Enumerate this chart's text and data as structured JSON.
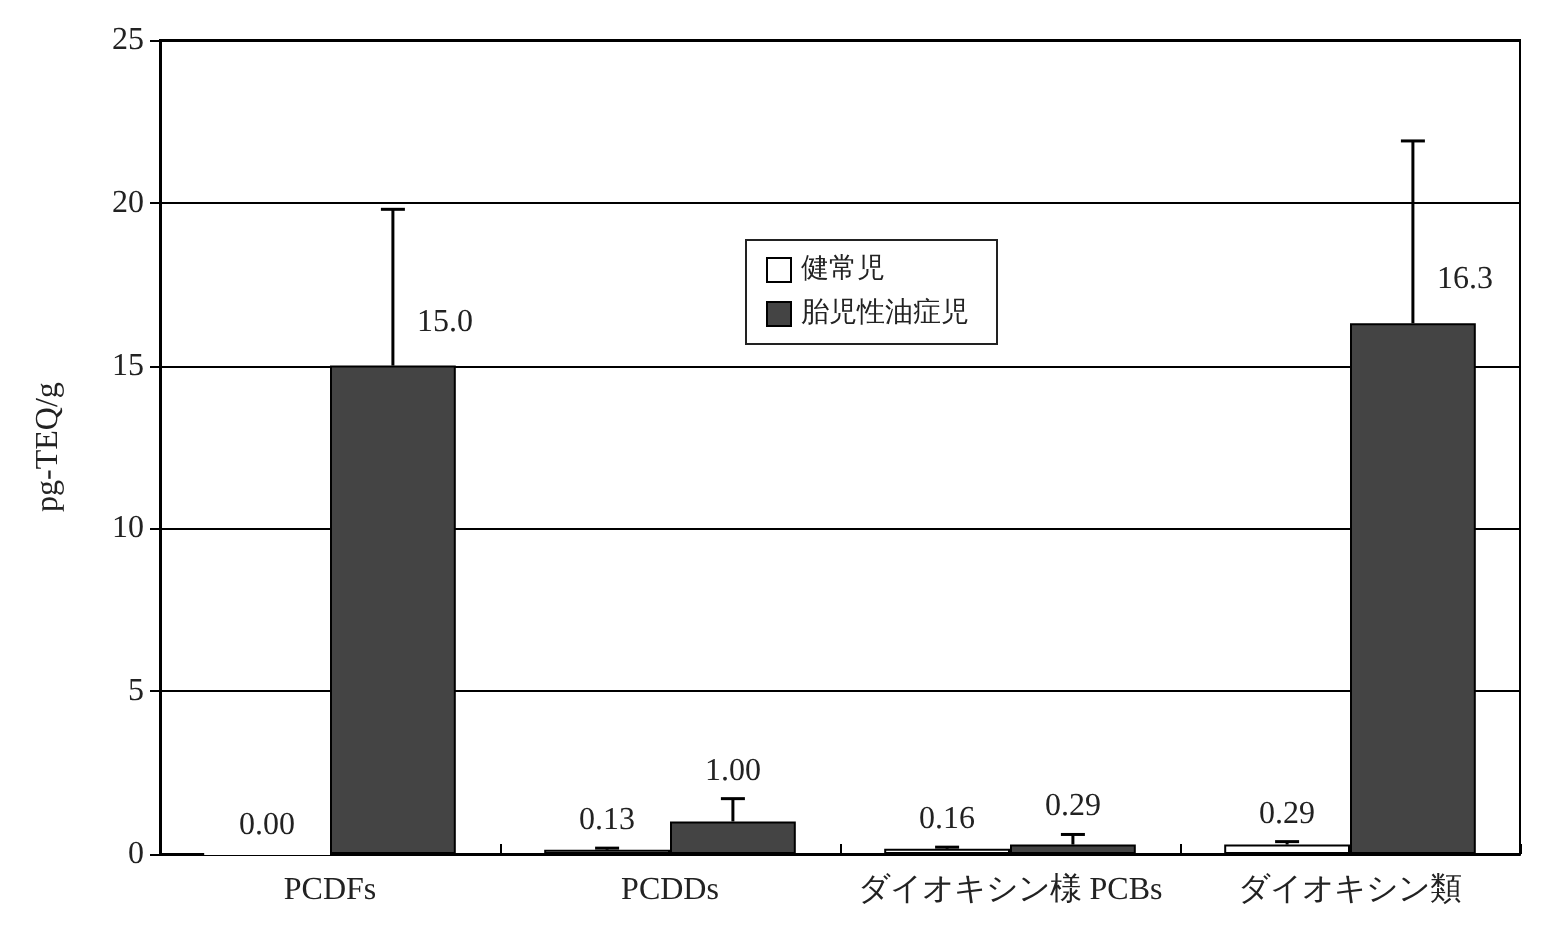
{
  "chart_data": {
    "type": "bar",
    "ylabel": "pg-TEQ/g",
    "categories": [
      "PCDFs",
      "PCDDs",
      "ダイオキシン様 PCBs",
      "ダイオキシン類"
    ],
    "series": [
      {
        "name": "健常児",
        "color": "#ffffff",
        "values": [
          0.0,
          0.13,
          0.16,
          0.29
        ],
        "value_labels": [
          "0.00",
          "0.13",
          "0.16",
          "0.29"
        ],
        "errors": [
          null,
          [
            0.13,
            0.18
          ],
          [
            0.16,
            0.21
          ],
          [
            0.29,
            0.38
          ]
        ]
      },
      {
        "name": "胎児性油症児",
        "color": "#444444",
        "values": [
          15.0,
          1.0,
          0.29,
          16.3
        ],
        "value_labels": [
          "15.0",
          "1.00",
          "0.29",
          "16.3"
        ],
        "errors": [
          [
            15.0,
            19.8
          ],
          [
            1.0,
            1.7
          ],
          [
            0.29,
            0.6
          ],
          [
            16.3,
            21.9
          ]
        ]
      }
    ],
    "ylim": [
      0,
      25
    ],
    "yticks": [
      0,
      5,
      10,
      15,
      20,
      25
    ],
    "grid": "y",
    "legend": "top center"
  }
}
